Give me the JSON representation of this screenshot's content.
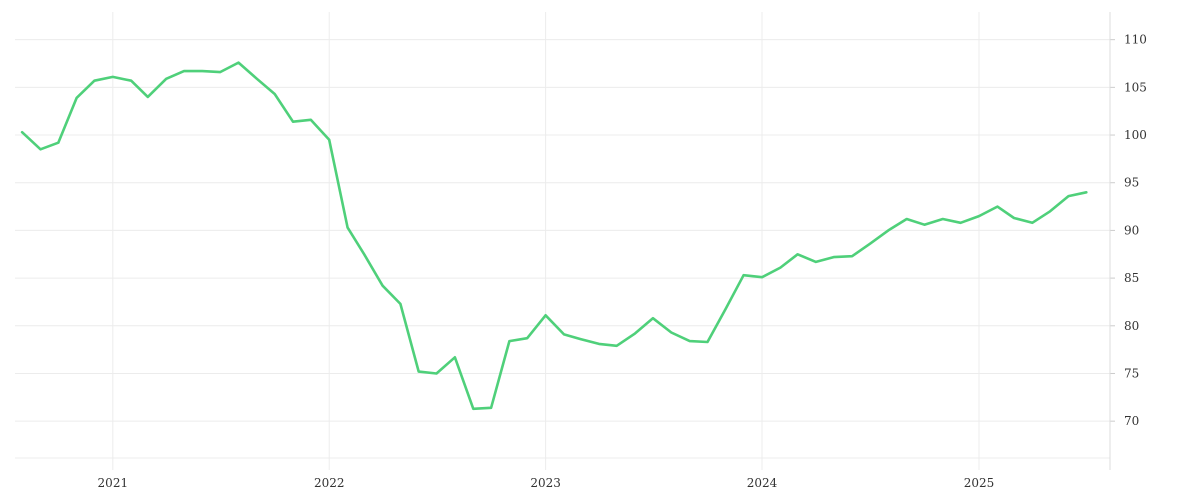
{
  "chart_data": {
    "type": "line",
    "title": "",
    "xlabel": "",
    "ylabel": "",
    "x_tick_labels": [
      "2021",
      "2022",
      "2023",
      "2024",
      "2025"
    ],
    "y_tick_labels": [
      "70",
      "75",
      "80",
      "85",
      "90",
      "95",
      "100",
      "105",
      "110"
    ],
    "y_ticks": [
      70,
      75,
      80,
      85,
      90,
      95,
      100,
      105,
      110
    ],
    "ylim": [
      65.3,
      112.9
    ],
    "xlim": [
      "2020-07-20",
      "2025-08-10"
    ],
    "y_axis_position": "right",
    "grid": true,
    "legend": "none",
    "line_color": "#4fd07a",
    "series": [
      {
        "x": [
          "2020-08-01",
          "2020-09-01",
          "2020-10-01",
          "2020-11-01",
          "2020-12-01",
          "2021-01-01",
          "2021-02-01",
          "2021-03-01",
          "2021-04-01",
          "2021-05-01",
          "2021-06-01",
          "2021-07-01",
          "2021-08-01",
          "2021-09-01",
          "2021-10-01",
          "2021-11-01",
          "2021-12-01",
          "2022-01-01",
          "2022-02-01",
          "2022-03-01",
          "2022-04-01",
          "2022-05-01",
          "2022-06-01",
          "2022-07-01",
          "2022-08-01",
          "2022-09-01",
          "2022-10-01",
          "2022-11-01",
          "2022-12-01",
          "2023-01-01",
          "2023-02-01",
          "2023-03-01",
          "2023-04-01",
          "2023-05-01",
          "2023-06-01",
          "2023-07-01",
          "2023-08-01",
          "2023-09-01",
          "2023-10-01",
          "2023-11-01",
          "2023-12-01",
          "2024-01-01",
          "2024-02-01",
          "2024-03-01",
          "2024-04-01",
          "2024-05-01",
          "2024-06-01",
          "2024-07-01",
          "2024-08-01",
          "2024-09-01",
          "2024-10-01",
          "2024-11-01",
          "2024-12-01",
          "2025-01-01",
          "2025-02-01",
          "2025-03-01",
          "2025-04-01",
          "2025-05-01",
          "2025-06-01",
          "2025-07-01"
        ],
        "values": [
          100.3,
          98.5,
          99.2,
          103.9,
          105.7,
          106.1,
          105.7,
          104.0,
          105.9,
          106.7,
          106.7,
          106.6,
          107.6,
          105.9,
          104.3,
          101.4,
          101.6,
          99.5,
          90.3,
          87.5,
          84.2,
          82.3,
          75.2,
          75.0,
          76.7,
          71.3,
          71.4,
          78.4,
          78.7,
          81.1,
          79.1,
          78.6,
          78.1,
          77.9,
          79.2,
          80.8,
          79.3,
          78.4,
          78.3,
          81.8,
          85.3,
          85.1,
          86.1,
          87.5,
          86.7,
          87.2,
          87.3,
          88.6,
          90.0,
          91.2,
          90.6,
          91.2,
          90.8,
          91.5,
          92.5,
          91.3,
          90.8,
          92.0,
          93.6,
          94.0
        ]
      }
    ]
  }
}
